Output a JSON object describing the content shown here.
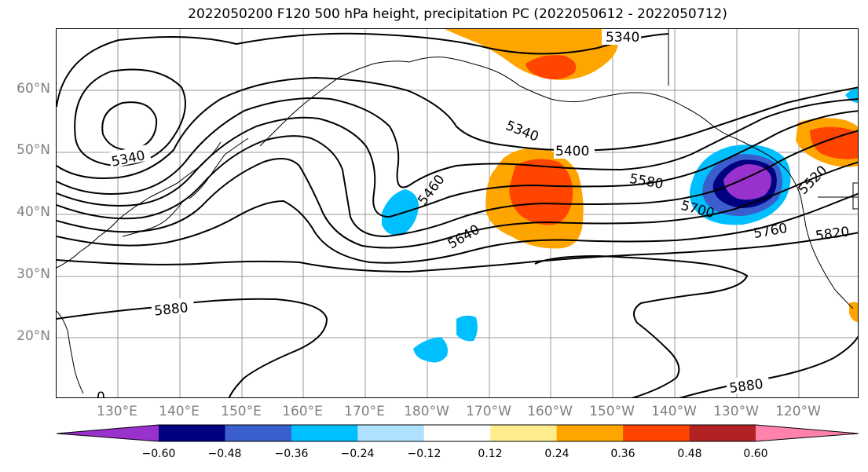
{
  "title": "2022050200 F120 500 hPa height, precipitation PC (2022050612 - 2022050712)",
  "map": {
    "projection": "cylindrical",
    "lon_range": [
      "120°E",
      "110°W"
    ],
    "lat_range": [
      "10°N",
      "70°N"
    ],
    "gridlines": true,
    "lat_labels": [
      "60°N",
      "50°N",
      "40°N",
      "30°N",
      "20°N"
    ],
    "lon_labels": [
      "130°E",
      "140°E",
      "150°E",
      "160°E",
      "170°E",
      "180°W",
      "170°W",
      "160°W",
      "150°W",
      "140°W",
      "130°W",
      "120°W"
    ],
    "contour_labels": [
      "5340",
      "5340",
      "5340",
      "5400",
      "5460",
      "5520",
      "5580",
      "5640",
      "5700",
      "5760",
      "5820",
      "5880",
      "5880"
    ],
    "contour_labels_partial": [
      "0"
    ]
  },
  "colorbar": {
    "ticks": [
      "−0.60",
      "−0.48",
      "−0.36",
      "−0.24",
      "−0.12",
      "0.12",
      "0.24",
      "0.36",
      "0.48",
      "0.60"
    ],
    "colors": [
      "#9932CC",
      "#000080",
      "#3A5FCD",
      "#00BFFF",
      "#B0E2FF",
      "#FFFFFF",
      "#FFEC8B",
      "#FFA500",
      "#FF4500",
      "#B22222",
      "#FF82AB"
    ]
  },
  "colors": {
    "grid": "#999999",
    "contour": "#000000",
    "axis_label": "#808080"
  }
}
